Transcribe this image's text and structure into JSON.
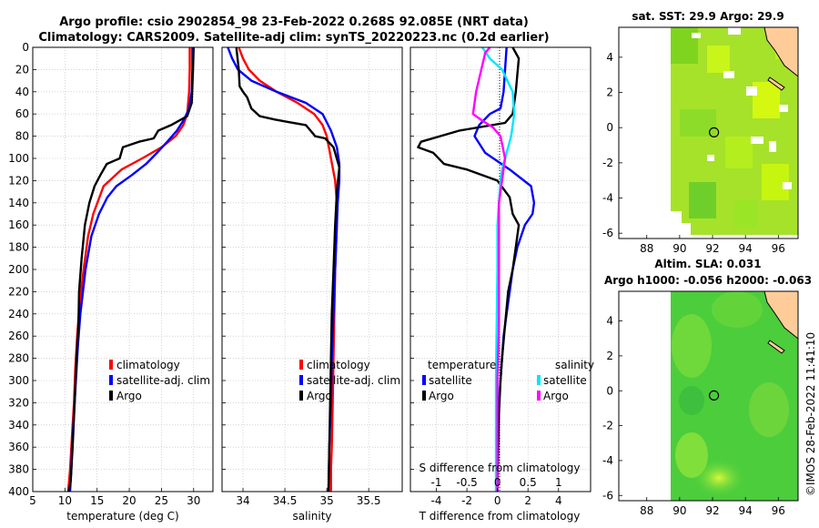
{
  "header": {
    "title_line1": "Argo profile: csio 2902854_98 23-Feb-2022 0.268S 92.085E (NRT data)",
    "title_line2": "Climatology: CARS2009. Satellite-adj clim: synTS_20220223.nc (0.2d earlier)"
  },
  "colors": {
    "climatology": "#ff0000",
    "satellite": "#0000ff",
    "argo": "#000000",
    "salinity_satellite": "#00e5ff",
    "salinity_argo": "#ff00ff",
    "land": "#ffcc99",
    "field_light": "#ccff00",
    "field_dark": "#33cc33"
  },
  "watermark": "©IMOS 28-Feb-2022 11:41:10",
  "chart_data": [
    {
      "id": "temperature",
      "type": "line",
      "xlabel": "temperature (deg C)",
      "ylabel": "",
      "xlim": [
        5,
        33
      ],
      "ylim": [
        400,
        0
      ],
      "xticks": [
        5,
        10,
        15,
        20,
        25,
        30
      ],
      "yticks": [
        0,
        20,
        40,
        60,
        80,
        100,
        120,
        140,
        160,
        180,
        200,
        220,
        240,
        260,
        280,
        300,
        320,
        340,
        360,
        380,
        400
      ],
      "legend": [
        "climatology",
        "satellite-adj. clim",
        "Argo"
      ],
      "legend_position": "lower-right",
      "series": [
        {
          "name": "climatology",
          "color": "#ff0000",
          "x": [
            29.4,
            29.4,
            29.3,
            29.0,
            28.4,
            27.2,
            25.0,
            22.0,
            18.8,
            16.0,
            14.4,
            13.6,
            12.9,
            12.3,
            11.9,
            11.6,
            11.4,
            11.2,
            11.0,
            10.8,
            10.5
          ],
          "y": [
            0,
            20,
            40,
            60,
            70,
            80,
            90,
            100,
            110,
            125,
            150,
            170,
            200,
            230,
            260,
            290,
            320,
            340,
            360,
            380,
            400
          ]
        },
        {
          "name": "satellite-adj. clim",
          "color": "#0000ff",
          "x": [
            29.8,
            29.8,
            29.7,
            29.3,
            28.5,
            27.4,
            25.9,
            24.3,
            22.6,
            20.4,
            18.0,
            16.6,
            15.3,
            14.1,
            13.2,
            12.4,
            12.0,
            11.7,
            11.5,
            11.3,
            11.1,
            11.0,
            10.8
          ],
          "y": [
            0,
            20,
            40,
            55,
            65,
            75,
            85,
            95,
            105,
            115,
            125,
            135,
            150,
            170,
            200,
            240,
            270,
            300,
            320,
            340,
            360,
            380,
            400
          ]
        },
        {
          "name": "Argo",
          "color": "#000000",
          "x": [
            30.0,
            29.9,
            29.7,
            29.0,
            26.5,
            24.5,
            23.8,
            21.5,
            19.0,
            18.5,
            16.5,
            15.5,
            14.6,
            13.8,
            13.1,
            12.6,
            12.2,
            12.1,
            11.8,
            11.5,
            11.2,
            10.9,
            10.6
          ],
          "y": [
            0,
            20,
            50,
            62,
            70,
            75,
            82,
            85,
            90,
            100,
            105,
            115,
            125,
            140,
            160,
            190,
            220,
            250,
            280,
            320,
            360,
            390,
            400
          ]
        }
      ]
    },
    {
      "id": "salinity",
      "type": "line",
      "xlabel": "salinity",
      "ylabel": "",
      "xlim": [
        33.75,
        35.9
      ],
      "ylim": [
        400,
        0
      ],
      "xticks": [
        34,
        34.5,
        35,
        35.5
      ],
      "legend": [
        "climatology",
        "satellite-adj. clim",
        "Argo"
      ],
      "legend_position": "lower-right",
      "series": [
        {
          "name": "climatology",
          "color": "#ff0000",
          "x": [
            33.95,
            34.0,
            34.07,
            34.2,
            34.4,
            34.65,
            34.85,
            34.95,
            35.0,
            35.05,
            35.1,
            35.12,
            35.12,
            35.11,
            35.1,
            35.09,
            35.08,
            35.07,
            35.06,
            35.05,
            35.05
          ],
          "y": [
            0,
            10,
            20,
            30,
            40,
            50,
            60,
            70,
            80,
            100,
            120,
            140,
            160,
            180,
            200,
            240,
            280,
            320,
            360,
            380,
            400
          ]
        },
        {
          "name": "satellite-adj. clim",
          "color": "#0000ff",
          "x": [
            33.82,
            33.87,
            33.94,
            34.1,
            34.4,
            34.75,
            34.95,
            35.05,
            35.12,
            35.15,
            35.15,
            35.13,
            35.12,
            35.1,
            35.08,
            35.06,
            35.05,
            35.03,
            35.02
          ],
          "y": [
            0,
            10,
            20,
            30,
            40,
            50,
            60,
            75,
            90,
            105,
            120,
            140,
            160,
            200,
            240,
            280,
            320,
            360,
            400
          ]
        },
        {
          "name": "Argo",
          "color": "#000000",
          "x": [
            33.92,
            33.95,
            33.96,
            34.0,
            34.05,
            34.1,
            34.2,
            34.38,
            34.52,
            34.75,
            34.84,
            34.86,
            34.98,
            35.08,
            35.15,
            35.12,
            35.1,
            35.08,
            35.06,
            35.05,
            35.04,
            35.03,
            35.02
          ],
          "y": [
            0,
            20,
            35,
            40,
            45,
            55,
            62,
            65,
            67,
            70,
            78,
            80,
            82,
            90,
            108,
            130,
            160,
            200,
            240,
            280,
            320,
            360,
            400
          ]
        }
      ]
    },
    {
      "id": "difference",
      "type": "line",
      "xlabel": "T difference from climatology",
      "xlabel_top": "S difference from climatology",
      "xlim": [
        -5.7,
        6.1
      ],
      "ylim": [
        400,
        0
      ],
      "xticks": [
        -4,
        -2,
        0,
        2,
        4
      ],
      "s_tick_labels": [
        "-1",
        "-0.5",
        "0",
        "0.5",
        "1"
      ],
      "legend_temperature_title": "temperature",
      "legend_salinity_title": "salinity",
      "legend_temperature_items": [
        "satellite",
        "Argo"
      ],
      "legend_salinity_items": [
        "satellite",
        "Argo"
      ],
      "series": [
        {
          "name": "temperature satellite",
          "color": "#0000ff",
          "x": [
            0.6,
            0.5,
            0.4,
            0.2,
            -0.5,
            -1.2,
            -1.5,
            -0.8,
            0.8,
            2.2,
            2.4,
            2.3,
            1.8,
            1.3,
            1.0,
            0.8,
            0.6,
            0.4,
            0.3,
            0.2,
            0.1,
            0.05,
            0.0,
            0.0
          ],
          "y": [
            0,
            20,
            40,
            55,
            60,
            70,
            80,
            95,
            110,
            125,
            140,
            150,
            160,
            180,
            200,
            220,
            240,
            260,
            280,
            300,
            320,
            350,
            380,
            400
          ]
        },
        {
          "name": "temperature Argo",
          "color": "#000000",
          "x": [
            1.0,
            1.4,
            1.2,
            1.0,
            0.5,
            -2.5,
            -5.0,
            -5.2,
            -4.2,
            -3.5,
            -2.0,
            0.0,
            0.8,
            1.0,
            1.4,
            1.2,
            1.0,
            0.7,
            0.5,
            0.3,
            0.2,
            0.1,
            0.05,
            0.0
          ],
          "y": [
            0,
            10,
            40,
            60,
            68,
            75,
            85,
            90,
            95,
            105,
            110,
            120,
            135,
            150,
            160,
            180,
            200,
            220,
            250,
            280,
            300,
            330,
            360,
            400
          ]
        },
        {
          "name": "salinity satellite",
          "color": "#00e5ff",
          "x": [
            -1.0,
            -0.5,
            0.3,
            1.0,
            1.1,
            0.9,
            0.7,
            0.5,
            0.3,
            0.2,
            0.1,
            0.0,
            0.0,
            -0.05,
            -0.1,
            -0.1,
            -0.1
          ],
          "y": [
            0,
            10,
            20,
            40,
            60,
            80,
            90,
            100,
            110,
            120,
            140,
            160,
            200,
            250,
            300,
            350,
            400
          ]
        },
        {
          "name": "salinity Argo",
          "color": "#ff00ff",
          "x": [
            -0.5,
            -0.8,
            -1.4,
            -1.6,
            -1.0,
            -0.3,
            0.2,
            0.5,
            0.3,
            0.1,
            0.1,
            0.1,
            0.1,
            0.0,
            0.0
          ],
          "y": [
            0,
            5,
            40,
            60,
            66,
            72,
            80,
            100,
            120,
            140,
            160,
            200,
            250,
            300,
            400
          ]
        }
      ]
    },
    {
      "id": "sst_map",
      "type": "heatmap",
      "title": "sat. SST: 29.9 Argo: 29.9",
      "xticks": [
        88,
        90,
        92,
        94,
        96
      ],
      "yticks": [
        4,
        2,
        0,
        -2,
        -4,
        -6
      ],
      "xlim": [
        86.3,
        97.2
      ],
      "ylim": [
        -6.3,
        5.7
      ],
      "argo_position": [
        92.085,
        -0.268
      ]
    },
    {
      "id": "sla_map",
      "type": "heatmap",
      "title_line1": "Altim. SLA: 0.031",
      "title_line2": "Argo h1000: -0.056 h2000: -0.063",
      "xticks": [
        88,
        90,
        92,
        94,
        96
      ],
      "yticks": [
        4,
        2,
        0,
        -2,
        -4,
        -6
      ],
      "xlim": [
        86.3,
        97.2
      ],
      "ylim": [
        -6.3,
        5.7
      ],
      "argo_position": [
        92.085,
        -0.268
      ]
    }
  ]
}
